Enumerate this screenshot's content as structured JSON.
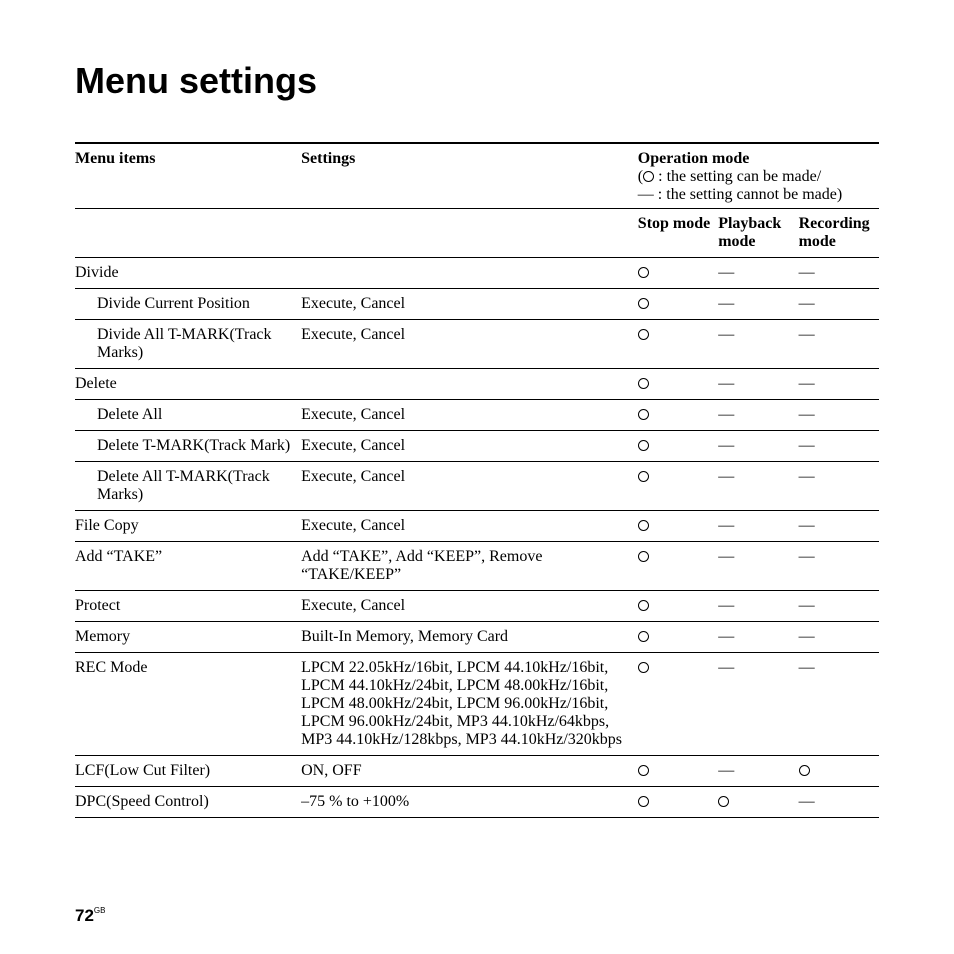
{
  "title": "Menu settings",
  "header": {
    "menu_items": "Menu items",
    "settings": "Settings",
    "operation_mode": "Operation mode",
    "legend_can": ": the setting can be made/",
    "legend_cannot": "— : the setting cannot be made)",
    "legend_open": "(",
    "stop_mode": "Stop mode",
    "playback_mode": "Playback mode",
    "recording_mode": "Recording mode"
  },
  "marks": {
    "dash": "—"
  },
  "rows": [
    {
      "item": "Divide",
      "indent": false,
      "settings": "",
      "stop": "o",
      "play": "-",
      "rec": "-"
    },
    {
      "item": "Divide Current Position",
      "indent": true,
      "settings": "Execute, Cancel",
      "stop": "o",
      "play": "-",
      "rec": "-"
    },
    {
      "item": "Divide All T-MARK(Track Marks)",
      "indent": true,
      "settings": "Execute, Cancel",
      "stop": "o",
      "play": "-",
      "rec": "-"
    },
    {
      "item": "Delete",
      "indent": false,
      "settings": "",
      "stop": "o",
      "play": "-",
      "rec": "-"
    },
    {
      "item": "Delete All",
      "indent": true,
      "settings": "Execute, Cancel",
      "stop": "o",
      "play": "-",
      "rec": "-"
    },
    {
      "item": "Delete T-MARK(Track Mark)",
      "indent": true,
      "settings": "Execute, Cancel",
      "stop": "o",
      "play": "-",
      "rec": "-"
    },
    {
      "item": "Delete All T-MARK(Track Marks)",
      "indent": true,
      "settings": "Execute, Cancel",
      "stop": "o",
      "play": "-",
      "rec": "-"
    },
    {
      "item": "File Copy",
      "indent": false,
      "settings": "Execute,  Cancel",
      "stop": "o",
      "play": "-",
      "rec": "-"
    },
    {
      "item": "Add “TAKE”",
      "indent": false,
      "settings": "Add “TAKE”, Add “KEEP”, Remove “TAKE/KEEP”",
      "stop": "o",
      "play": "-",
      "rec": "-"
    },
    {
      "item": "Protect",
      "indent": false,
      "settings": "Execute, Cancel",
      "stop": "o",
      "play": "-",
      "rec": "-"
    },
    {
      "item": "Memory",
      "indent": false,
      "settings": "Built-In Memory, Memory Card",
      "stop": "o",
      "play": "-",
      "rec": "-"
    },
    {
      "item": "REC Mode",
      "indent": false,
      "settings": "LPCM 22.05kHz/16bit, LPCM 44.10kHz/16bit, LPCM 44.10kHz/24bit, LPCM 48.00kHz/16bit, LPCM 48.00kHz/24bit, LPCM 96.00kHz/16bit, LPCM 96.00kHz/24bit, MP3  44.10kHz/64kbps, MP3 44.10kHz/128kbps, MP3  44.10kHz/320kbps",
      "stop": "o",
      "play": "-",
      "rec": "-"
    },
    {
      "item": "LCF(Low Cut Filter)",
      "indent": false,
      "settings": "ON, OFF",
      "stop": "o",
      "play": "-",
      "rec": "o"
    },
    {
      "item": "DPC(Speed Control)",
      "indent": false,
      "settings": "–75 % to +100%",
      "stop": "o",
      "play": "o",
      "rec": "-"
    }
  ],
  "page_number": "72",
  "page_suffix": "GB"
}
